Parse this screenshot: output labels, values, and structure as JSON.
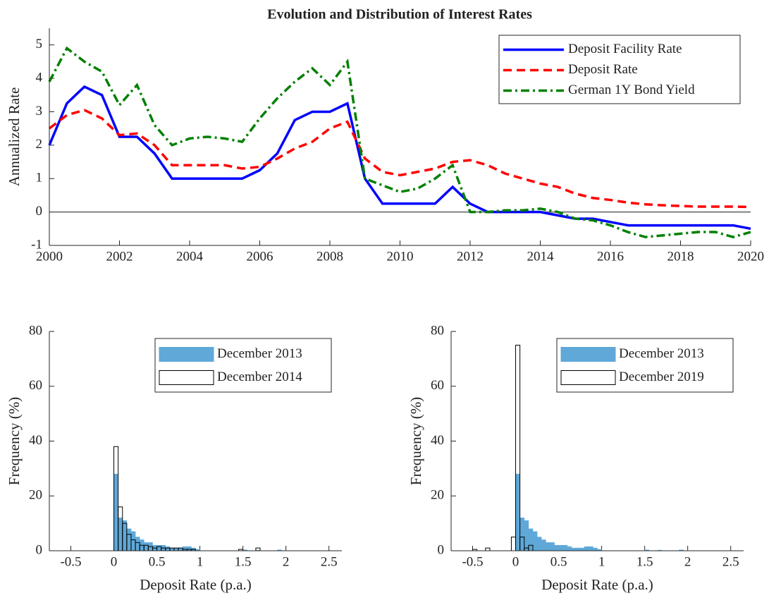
{
  "chart_data": [
    {
      "type": "line",
      "title": "Evolution and Distribution of Interest Rates",
      "ylabel": "Annualized Rate",
      "x": [
        2000,
        2000.5,
        2001,
        2001.5,
        2002,
        2002.5,
        2003,
        2003.5,
        2004,
        2004.5,
        2005,
        2005.5,
        2006,
        2006.5,
        2007,
        2007.5,
        2008,
        2008.5,
        2009,
        2009.5,
        2010,
        2010.5,
        2011,
        2011.5,
        2012,
        2012.5,
        2013,
        2013.5,
        2014,
        2014.5,
        2015,
        2015.5,
        2016,
        2016.5,
        2017,
        2017.5,
        2018,
        2018.5,
        2019,
        2019.5,
        2020
      ],
      "series": [
        {
          "name": "Deposit Facility Rate",
          "color": "#0000ff",
          "linestyle": "-",
          "values": [
            2.0,
            3.25,
            3.75,
            3.5,
            2.25,
            2.25,
            1.75,
            1.0,
            1.0,
            1.0,
            1.0,
            1.0,
            1.25,
            1.75,
            2.75,
            3.0,
            3.0,
            3.25,
            1.0,
            0.25,
            0.25,
            0.25,
            0.25,
            0.75,
            0.25,
            0.0,
            0.0,
            0.0,
            0.0,
            -0.1,
            -0.2,
            -0.2,
            -0.3,
            -0.4,
            -0.4,
            -0.4,
            -0.4,
            -0.4,
            -0.4,
            -0.4,
            -0.5
          ]
        },
        {
          "name": "Deposit Rate",
          "color": "#ff0000",
          "linestyle": "--",
          "values": [
            2.5,
            2.9,
            3.05,
            2.8,
            2.3,
            2.35,
            2.0,
            1.4,
            1.4,
            1.4,
            1.4,
            1.3,
            1.35,
            1.6,
            1.9,
            2.1,
            2.5,
            2.7,
            1.6,
            1.2,
            1.1,
            1.2,
            1.3,
            1.5,
            1.55,
            1.4,
            1.15,
            1.0,
            0.85,
            0.75,
            0.55,
            0.42,
            0.36,
            0.28,
            0.23,
            0.2,
            0.18,
            0.16,
            0.16,
            0.16,
            0.15
          ]
        },
        {
          "name": "German 1Y Bond Yield",
          "color": "#008000",
          "linestyle": "-.",
          "values": [
            3.9,
            4.9,
            4.5,
            4.2,
            3.2,
            3.8,
            2.6,
            2.0,
            2.2,
            2.25,
            2.2,
            2.1,
            2.8,
            3.4,
            3.9,
            4.3,
            3.8,
            4.5,
            1.0,
            0.8,
            0.6,
            0.7,
            1.0,
            1.4,
            0.0,
            0.0,
            0.05,
            0.05,
            0.1,
            0.0,
            -0.2,
            -0.25,
            -0.4,
            -0.6,
            -0.75,
            -0.7,
            -0.65,
            -0.6,
            -0.6,
            -0.75,
            -0.6
          ]
        }
      ],
      "hlines": [
        0
      ],
      "hline_color": "#808080",
      "xlim": [
        2000,
        2020
      ],
      "xticks": [
        2000,
        2002,
        2004,
        2006,
        2008,
        2010,
        2012,
        2014,
        2016,
        2018,
        2020
      ],
      "ylim": [
        -1,
        5.5
      ],
      "yticks": [
        -1,
        0,
        1,
        2,
        3,
        4,
        5
      ],
      "legend": "upper right"
    },
    {
      "type": "histogram",
      "xlabel": "Deposit Rate (p.a.)",
      "ylabel": "Frequency (%)",
      "bins": [
        -0.6,
        -0.55,
        -0.5,
        -0.45,
        -0.4,
        -0.35,
        -0.3,
        -0.25,
        -0.2,
        -0.15,
        -0.1,
        -0.05,
        0,
        0.05,
        0.1,
        0.15,
        0.2,
        0.25,
        0.3,
        0.35,
        0.4,
        0.45,
        0.5,
        0.55,
        0.6,
        0.65,
        0.7,
        0.75,
        0.8,
        0.85,
        0.9,
        0.95,
        1,
        1.05,
        1.1,
        1.15,
        1.2,
        1.25,
        1.3,
        1.35,
        1.4,
        1.45,
        1.5,
        1.55,
        1.6,
        1.65,
        1.7,
        1.75,
        1.8,
        1.85,
        1.9,
        1.95,
        2,
        2.05,
        2.1,
        2.15,
        2.2,
        2.25,
        2.3,
        2.35,
        2.4,
        2.45,
        2.5,
        2.55,
        2.6
      ],
      "series": [
        {
          "name": "December 2013",
          "color": "#5fa8d8",
          "edgecolor": "#5fa8d8",
          "values": [
            0,
            0,
            0,
            0,
            0,
            0,
            0,
            0,
            0,
            0,
            0,
            0,
            28,
            12,
            11,
            8,
            7,
            5,
            4,
            3,
            3,
            2,
            2,
            2,
            1.5,
            1,
            1,
            1,
            1.5,
            1.5,
            1,
            0.5,
            0,
            0,
            0,
            0,
            0,
            0,
            0,
            0,
            0,
            0,
            0.3,
            0,
            0,
            0.2,
            0,
            0,
            0,
            0,
            0.3,
            0,
            0,
            0,
            0,
            0,
            0,
            0,
            0,
            0,
            0,
            0,
            0,
            0
          ]
        },
        {
          "name": "December 2014",
          "color": "none",
          "edgecolor": "#000000",
          "values": [
            0,
            0,
            0,
            0,
            0,
            0,
            0,
            0,
            0,
            0,
            0,
            0,
            38,
            16,
            10,
            6,
            4,
            3,
            2,
            2,
            1.5,
            1,
            1.5,
            1,
            1,
            1,
            1,
            1,
            0.5,
            0.5,
            0.5,
            0,
            0,
            0,
            0,
            0,
            0,
            0,
            0,
            0,
            0,
            0.5,
            0,
            0,
            0,
            1,
            0,
            0,
            0,
            0,
            0,
            0,
            0,
            0,
            0,
            0,
            0,
            0,
            0,
            0,
            0,
            0,
            0,
            0
          ]
        }
      ],
      "xlim": [
        -0.75,
        2.65
      ],
      "xticks": [
        -0.5,
        0,
        0.5,
        1,
        1.5,
        2,
        2.5
      ],
      "ylim": [
        0,
        80
      ],
      "yticks": [
        0,
        20,
        40,
        60,
        80
      ],
      "legend": "upper right"
    },
    {
      "type": "histogram",
      "xlabel": "Deposit Rate (p.a.)",
      "ylabel": "Frequency (%)",
      "bins": [
        -0.6,
        -0.55,
        -0.5,
        -0.45,
        -0.4,
        -0.35,
        -0.3,
        -0.25,
        -0.2,
        -0.15,
        -0.1,
        -0.05,
        0,
        0.05,
        0.1,
        0.15,
        0.2,
        0.25,
        0.3,
        0.35,
        0.4,
        0.45,
        0.5,
        0.55,
        0.6,
        0.65,
        0.7,
        0.75,
        0.8,
        0.85,
        0.9,
        0.95,
        1,
        1.05,
        1.1,
        1.15,
        1.2,
        1.25,
        1.3,
        1.35,
        1.4,
        1.45,
        1.5,
        1.55,
        1.6,
        1.65,
        1.7,
        1.75,
        1.8,
        1.85,
        1.9,
        1.95,
        2,
        2.05,
        2.1,
        2.15,
        2.2,
        2.25,
        2.3,
        2.35,
        2.4,
        2.45,
        2.5,
        2.55,
        2.6
      ],
      "series": [
        {
          "name": "December 2013",
          "color": "#5fa8d8",
          "edgecolor": "#5fa8d8",
          "values": [
            0,
            0,
            0,
            0,
            0,
            0,
            0,
            0,
            0,
            0,
            0,
            0,
            28,
            12,
            11,
            8,
            7,
            5,
            4,
            3,
            3,
            2,
            2,
            2,
            1.5,
            1,
            1,
            1,
            1.5,
            1.5,
            1,
            0.5,
            0,
            0,
            0,
            0,
            0,
            0,
            0,
            0,
            0,
            0,
            0.3,
            0,
            0,
            0.2,
            0,
            0,
            0,
            0,
            0.3,
            0,
            0,
            0,
            0,
            0,
            0,
            0,
            0,
            0,
            0,
            0,
            0,
            0
          ]
        },
        {
          "name": "December 2019",
          "color": "none",
          "edgecolor": "#000000",
          "values": [
            0,
            0,
            0.5,
            0,
            0,
            1,
            0,
            0,
            0,
            0,
            0,
            5,
            75,
            5,
            1,
            2,
            0,
            0,
            0,
            0,
            0,
            0,
            0,
            0,
            0,
            0,
            0,
            0,
            0,
            0,
            0,
            0,
            0,
            0,
            0,
            0,
            0,
            0,
            0,
            0,
            0,
            0,
            0,
            0,
            0,
            0,
            0,
            0,
            0,
            0,
            0,
            0,
            0,
            0,
            0,
            0,
            0,
            0,
            0,
            0,
            0,
            0,
            0,
            0
          ]
        }
      ],
      "xlim": [
        -0.75,
        2.65
      ],
      "xticks": [
        -0.5,
        0,
        0.5,
        1,
        1.5,
        2,
        2.5
      ],
      "ylim": [
        0,
        80
      ],
      "yticks": [
        0,
        20,
        40,
        60,
        80
      ],
      "legend": "upper right"
    }
  ]
}
